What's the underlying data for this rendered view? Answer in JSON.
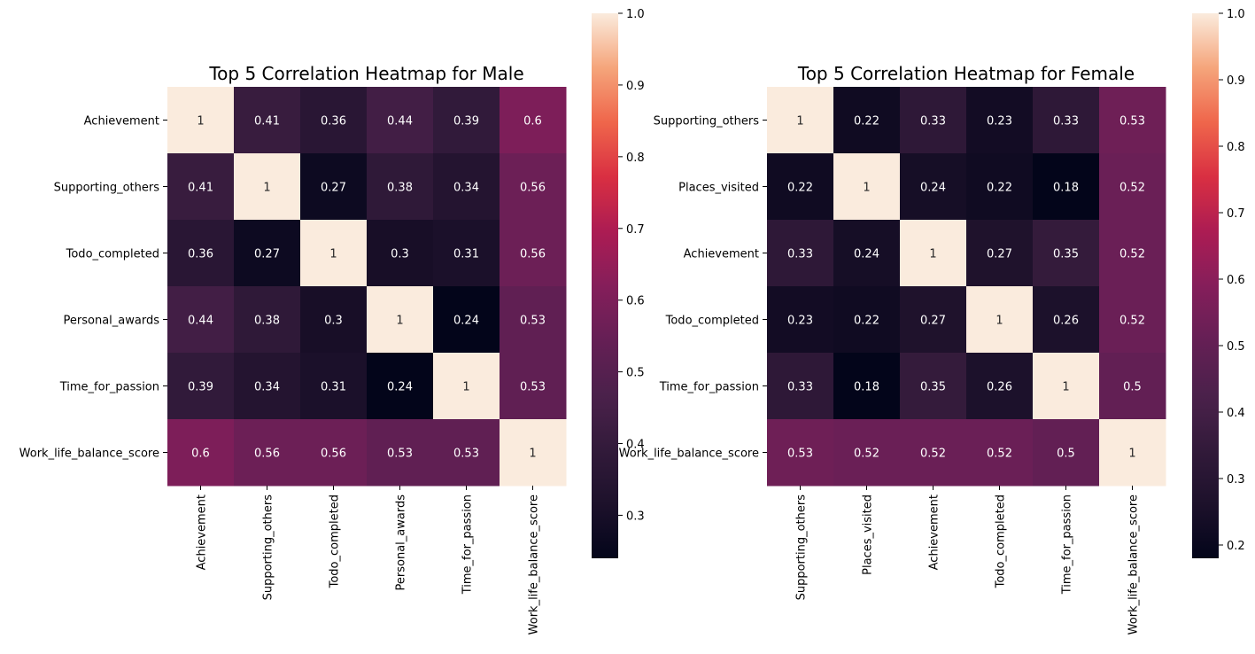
{
  "chart_data": [
    {
      "type": "heatmap",
      "title": "Top 5 Correlation Heatmap for Male",
      "labels": [
        "Achievement",
        "Supporting_others",
        "Todo_completed",
        "Personal_awards",
        "Time_for_passion",
        "Work_life_balance_score"
      ],
      "values": [
        [
          1,
          0.41,
          0.36,
          0.44,
          0.39,
          0.6
        ],
        [
          0.41,
          1,
          0.27,
          0.38,
          0.34,
          0.56
        ],
        [
          0.36,
          0.27,
          1,
          0.3,
          0.31,
          0.56
        ],
        [
          0.44,
          0.38,
          0.3,
          1,
          0.24,
          0.53
        ],
        [
          0.39,
          0.34,
          0.31,
          0.24,
          1,
          0.53
        ],
        [
          0.6,
          0.56,
          0.56,
          0.53,
          0.53,
          1
        ]
      ],
      "colorbar": {
        "vmin": 0.24,
        "vmax": 1.0,
        "ticks": [
          0.3,
          0.4,
          0.5,
          0.6,
          0.7,
          0.8,
          0.9,
          1.0
        ],
        "tick_labels": [
          "0.3",
          "0.4",
          "0.5",
          "0.6",
          "0.7",
          "0.8",
          "0.9",
          "1.0"
        ]
      },
      "colormap": "rocket"
    },
    {
      "type": "heatmap",
      "title": "Top 5 Correlation Heatmap for Female",
      "labels": [
        "Supporting_others",
        "Places_visited",
        "Achievement",
        "Todo_completed",
        "Time_for_passion",
        "Work_life_balance_score"
      ],
      "values": [
        [
          1,
          0.22,
          0.33,
          0.23,
          0.33,
          0.53
        ],
        [
          0.22,
          1,
          0.24,
          0.22,
          0.18,
          0.52
        ],
        [
          0.33,
          0.24,
          1,
          0.27,
          0.35,
          0.52
        ],
        [
          0.23,
          0.22,
          0.27,
          1,
          0.26,
          0.52
        ],
        [
          0.33,
          0.18,
          0.35,
          0.26,
          1,
          0.5
        ],
        [
          0.53,
          0.52,
          0.52,
          0.52,
          0.5,
          1
        ]
      ],
      "colorbar": {
        "vmin": 0.18,
        "vmax": 1.0,
        "ticks": [
          0.2,
          0.3,
          0.4,
          0.5,
          0.6,
          0.7,
          0.8,
          0.9,
          1.0
        ],
        "tick_labels": [
          "0.2",
          "0.3",
          "0.4",
          "0.5",
          "0.6",
          "0.7",
          "0.8",
          "0.9",
          "1.0"
        ]
      },
      "colormap": "rocket"
    }
  ]
}
